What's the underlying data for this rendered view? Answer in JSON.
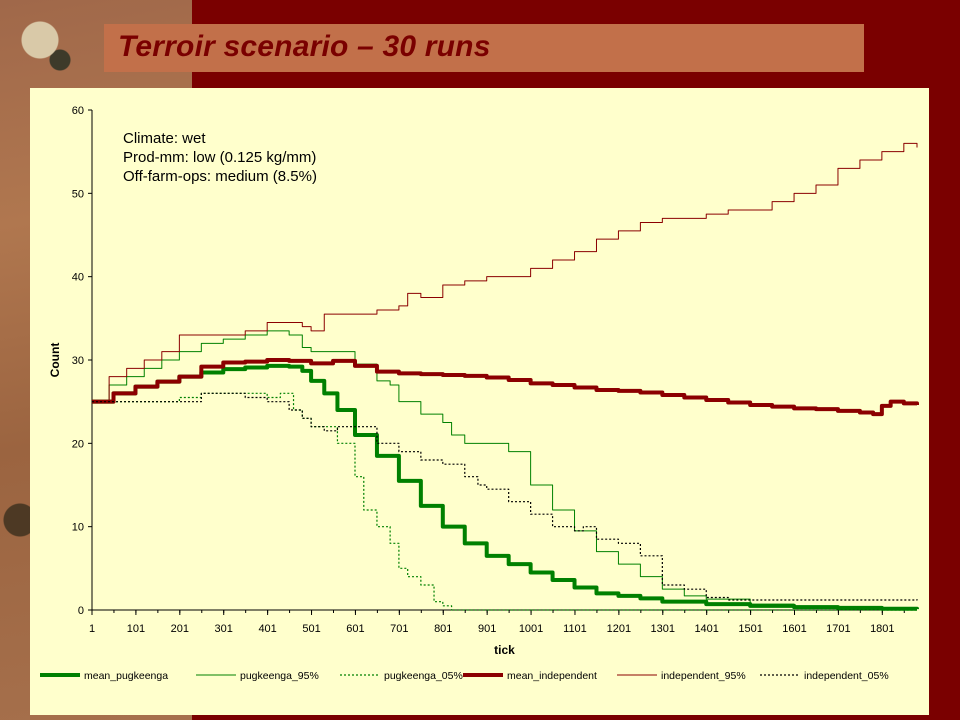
{
  "slide": {
    "title": "Terroir scenario – 30 runs"
  },
  "chart_data": {
    "type": "line",
    "xlabel": "tick",
    "ylabel": "Count",
    "xlim": [
      1,
      1880
    ],
    "ylim": [
      0,
      60
    ],
    "x_ticks": [
      "1",
      "101",
      "201",
      "301",
      "401",
      "501",
      "601",
      "701",
      "801",
      "901",
      "1001",
      "1101",
      "1201",
      "1301",
      "1401",
      "1501",
      "1601",
      "1701",
      "1801"
    ],
    "y_ticks": [
      "0",
      "10",
      "20",
      "30",
      "40",
      "50",
      "60"
    ],
    "grid": false,
    "legend_position": "bottom",
    "annotations": [
      "Climate: wet",
      "Prod-mm: low (0.125 kg/mm)",
      "Off-farm-ops: medium (8.5%)"
    ],
    "series": [
      {
        "name": "mean_pugkeenga",
        "color": "#008000",
        "style": "thick",
        "x": [
          1,
          50,
          100,
          150,
          200,
          250,
          300,
          350,
          400,
          450,
          480,
          500,
          530,
          560,
          600,
          650,
          700,
          750,
          800,
          850,
          900,
          950,
          1000,
          1050,
          1100,
          1150,
          1200,
          1250,
          1300,
          1400,
          1500,
          1600,
          1700,
          1800,
          1880
        ],
        "y": [
          25,
          26,
          26.8,
          27.4,
          28,
          28.5,
          28.9,
          29.1,
          29.3,
          29.2,
          28.7,
          27.5,
          26,
          24,
          21,
          18.5,
          15.5,
          12.5,
          10,
          8,
          6.5,
          5.5,
          4.5,
          3.6,
          2.7,
          2,
          1.7,
          1.4,
          1,
          0.7,
          0.5,
          0.35,
          0.25,
          0.15,
          0.1
        ]
      },
      {
        "name": "pugkeenga_95%",
        "color": "#008000",
        "style": "thin",
        "x": [
          1,
          40,
          80,
          120,
          160,
          200,
          250,
          300,
          350,
          400,
          450,
          480,
          500,
          550,
          600,
          650,
          680,
          700,
          750,
          800,
          820,
          850,
          900,
          950,
          1000,
          1050,
          1100,
          1150,
          1200,
          1250,
          1300,
          1350,
          1400,
          1500,
          1600,
          1700,
          1800,
          1880
        ],
        "y": [
          25,
          27,
          28,
          29,
          30,
          31,
          32,
          32.5,
          33,
          33.5,
          33,
          31.5,
          31,
          31,
          29.5,
          27.5,
          27,
          25,
          23.5,
          22.5,
          21,
          20,
          20,
          19,
          15,
          12,
          9.5,
          7,
          5.5,
          4,
          2.5,
          1.7,
          1.3,
          0.7,
          0.5,
          0.3,
          0.2,
          0.2
        ]
      },
      {
        "name": "pugkeenga_05%",
        "color": "#008000",
        "style": "dotted",
        "x": [
          1,
          100,
          200,
          250,
          300,
          350,
          400,
          430,
          460,
          480,
          500,
          530,
          560,
          600,
          620,
          650,
          680,
          700,
          720,
          750,
          780,
          800,
          820,
          1880
        ],
        "y": [
          25,
          25,
          25.5,
          26,
          26,
          26,
          25.5,
          26,
          24,
          23,
          22,
          22,
          20,
          16,
          12,
          10,
          8,
          5,
          4,
          3,
          1,
          0.5,
          0,
          0
        ]
      },
      {
        "name": "mean_independent",
        "color": "#8b0000",
        "style": "thick",
        "x": [
          1,
          50,
          100,
          150,
          200,
          250,
          300,
          350,
          400,
          450,
          500,
          550,
          600,
          650,
          700,
          750,
          800,
          850,
          900,
          950,
          1000,
          1050,
          1100,
          1150,
          1200,
          1250,
          1300,
          1350,
          1400,
          1450,
          1500,
          1550,
          1600,
          1650,
          1700,
          1750,
          1780,
          1800,
          1820,
          1850,
          1880
        ],
        "y": [
          25,
          26,
          26.8,
          27.4,
          28,
          29.2,
          29.7,
          29.8,
          30,
          29.9,
          29.6,
          29.9,
          29.3,
          28.6,
          28.4,
          28.3,
          28.2,
          28.1,
          27.9,
          27.6,
          27.2,
          27,
          26.7,
          26.4,
          26.3,
          26.1,
          25.8,
          25.5,
          25.2,
          24.9,
          24.6,
          24.4,
          24.2,
          24.1,
          23.9,
          23.7,
          23.5,
          24.5,
          25,
          24.8,
          24.6
        ]
      },
      {
        "name": "independent_95%",
        "color": "#8b0000",
        "style": "thin",
        "x": [
          1,
          40,
          80,
          120,
          160,
          200,
          250,
          300,
          350,
          400,
          450,
          480,
          500,
          530,
          600,
          650,
          700,
          720,
          750,
          800,
          850,
          900,
          950,
          1000,
          1050,
          1100,
          1150,
          1200,
          1250,
          1300,
          1350,
          1400,
          1450,
          1500,
          1550,
          1600,
          1650,
          1700,
          1750,
          1800,
          1850,
          1880
        ],
        "y": [
          25,
          28,
          29,
          30,
          31,
          33,
          33,
          33,
          33.5,
          34.5,
          34.5,
          34,
          33.5,
          35.5,
          35.5,
          36,
          36.5,
          38,
          37.5,
          39,
          39.5,
          40,
          40,
          41,
          42,
          43,
          44.5,
          45.5,
          46.5,
          47,
          47,
          47.5,
          48,
          48,
          49,
          50,
          51,
          53,
          54,
          55,
          56,
          55.5
        ]
      },
      {
        "name": "independent_05%",
        "color": "#000000",
        "style": "dotted",
        "x": [
          1,
          50,
          100,
          150,
          200,
          250,
          300,
          350,
          400,
          450,
          480,
          500,
          530,
          560,
          600,
          650,
          700,
          750,
          800,
          850,
          880,
          900,
          950,
          1000,
          1050,
          1100,
          1120,
          1150,
          1200,
          1250,
          1300,
          1350,
          1400,
          1450,
          1500,
          1600,
          1700,
          1800,
          1880
        ],
        "y": [
          25,
          25,
          25,
          25,
          25,
          26,
          26,
          25.5,
          25,
          24,
          23,
          22,
          21.5,
          22,
          22,
          20,
          19,
          18,
          17.5,
          16,
          15,
          14.5,
          13,
          11.5,
          10,
          9.5,
          10,
          8.5,
          8,
          6.5,
          3,
          2.5,
          1.5,
          1.2,
          1.2,
          1.2,
          1.2,
          1.2,
          1.3
        ]
      }
    ]
  }
}
